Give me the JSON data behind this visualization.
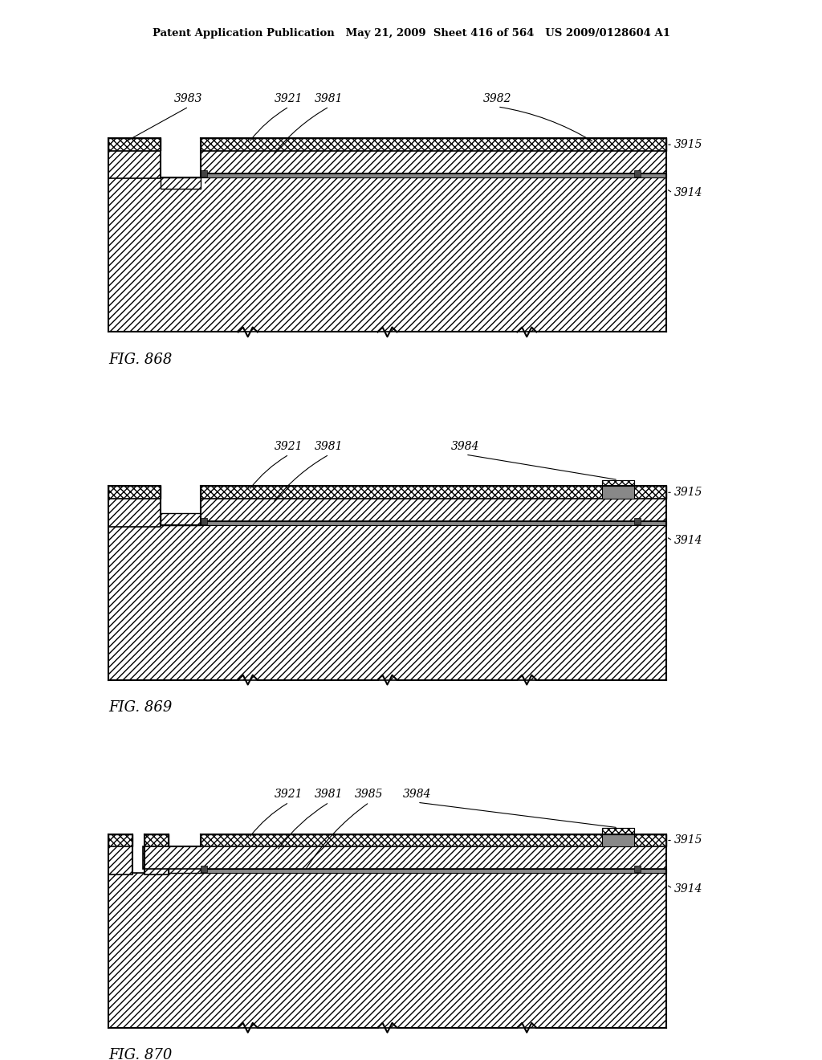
{
  "title_line": "Patent Application Publication   May 21, 2009  Sheet 416 of 564   US 2009/0128604 A1",
  "figures": [
    "FIG. 868",
    "FIG. 869",
    "FIG. 870"
  ],
  "bg_color": "#ffffff"
}
